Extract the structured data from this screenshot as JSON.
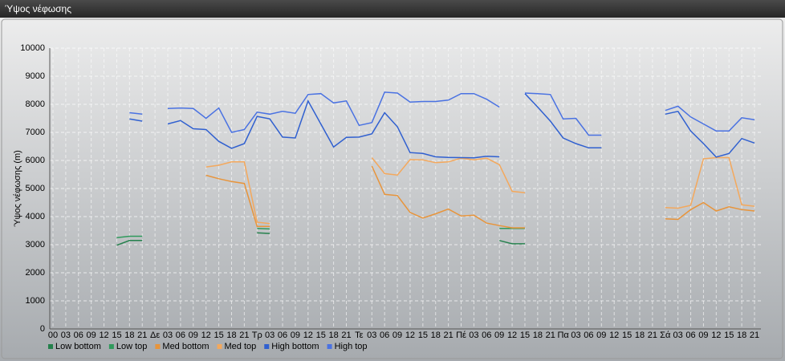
{
  "window_title": "Ύψος νέφωσης",
  "chart_data": {
    "type": "line",
    "y_label": "Ύψος νέφωσης (m)",
    "categories": [
      "00",
      "03",
      "06",
      "09",
      "12",
      "15",
      "18",
      "21",
      "Δε",
      "03",
      "06",
      "09",
      "12",
      "15",
      "18",
      "21",
      "Τρ",
      "03",
      "06",
      "09",
      "12",
      "15",
      "18",
      "21",
      "Τε",
      "03",
      "06",
      "09",
      "12",
      "15",
      "18",
      "21",
      "Πέ",
      "03",
      "06",
      "09",
      "12",
      "15",
      "18",
      "21",
      "Πα",
      "03",
      "06",
      "09",
      "12",
      "15",
      "18",
      "21",
      "Σά",
      "03",
      "06",
      "09",
      "12",
      "15",
      "18",
      "21"
    ],
    "ylim": [
      0,
      10000
    ],
    "yticks": [
      0,
      1000,
      2000,
      3000,
      4000,
      5000,
      6000,
      7000,
      8000,
      9000,
      10000
    ],
    "grid": true,
    "series": [
      {
        "name": "Low bottom",
        "color": "#24804c",
        "values": [
          null,
          null,
          null,
          null,
          null,
          2980,
          3150,
          3150,
          null,
          null,
          null,
          null,
          null,
          null,
          null,
          null,
          3420,
          3400,
          null,
          null,
          null,
          null,
          null,
          null,
          null,
          null,
          null,
          null,
          null,
          null,
          null,
          null,
          null,
          null,
          null,
          3150,
          3030,
          3030,
          null,
          null,
          null,
          null,
          null,
          null,
          null,
          null,
          null,
          null,
          null,
          null,
          null,
          null,
          null,
          null,
          null,
          null
        ]
      },
      {
        "name": "Low top",
        "color": "#2f9a5c",
        "values": [
          null,
          null,
          null,
          null,
          null,
          3250,
          3300,
          3300,
          null,
          null,
          null,
          null,
          null,
          null,
          null,
          null,
          3580,
          3560,
          null,
          null,
          null,
          null,
          null,
          null,
          null,
          null,
          null,
          null,
          null,
          null,
          null,
          null,
          null,
          null,
          null,
          3580,
          3580,
          3580,
          null,
          null,
          null,
          null,
          null,
          null,
          null,
          null,
          null,
          null,
          null,
          null,
          null,
          null,
          null,
          null,
          null,
          null
        ]
      },
      {
        "name": "Med bottom",
        "color": "#e8943a",
        "values": [
          null,
          null,
          null,
          null,
          null,
          null,
          null,
          null,
          null,
          null,
          null,
          null,
          5470,
          5350,
          5250,
          5180,
          3650,
          3650,
          null,
          null,
          null,
          null,
          null,
          null,
          null,
          5800,
          4790,
          4750,
          4150,
          3950,
          4100,
          4270,
          4020,
          4050,
          3770,
          3680,
          3600,
          3600,
          null,
          null,
          null,
          null,
          null,
          null,
          null,
          null,
          null,
          null,
          3920,
          3900,
          4250,
          4500,
          4200,
          4350,
          4250,
          4200
        ]
      },
      {
        "name": "Med top",
        "color": "#f4a85c",
        "values": [
          null,
          null,
          null,
          null,
          null,
          null,
          null,
          null,
          null,
          null,
          null,
          null,
          5770,
          5830,
          5950,
          5950,
          3800,
          3750,
          null,
          null,
          null,
          null,
          null,
          null,
          null,
          6100,
          5530,
          5480,
          6030,
          6020,
          5920,
          5950,
          6080,
          6020,
          6080,
          5850,
          4900,
          4850,
          null,
          null,
          null,
          null,
          null,
          null,
          null,
          null,
          null,
          null,
          4320,
          4300,
          4400,
          6060,
          6100,
          6100,
          4420,
          4370
        ]
      },
      {
        "name": "High bottom",
        "color": "#3060d0",
        "values": [
          null,
          null,
          null,
          null,
          null,
          null,
          7480,
          7400,
          null,
          7300,
          7420,
          7130,
          7100,
          6680,
          6430,
          6600,
          7570,
          7480,
          6830,
          6800,
          8120,
          7300,
          6480,
          6820,
          6830,
          6950,
          7700,
          7200,
          6280,
          6250,
          6130,
          6110,
          6100,
          6090,
          6150,
          6130,
          null,
          8380,
          7900,
          7400,
          6800,
          6600,
          6450,
          6450,
          null,
          null,
          null,
          null,
          7650,
          7750,
          7050,
          6600,
          6120,
          6250,
          6780,
          6620
        ]
      },
      {
        "name": "High top",
        "color": "#4a72e2",
        "values": [
          null,
          null,
          null,
          null,
          null,
          null,
          7700,
          7650,
          null,
          7850,
          7870,
          7850,
          7500,
          7870,
          7000,
          7100,
          7720,
          7650,
          7750,
          7680,
          8350,
          8380,
          8050,
          8120,
          7250,
          7350,
          8430,
          8400,
          8080,
          8100,
          8100,
          8150,
          8380,
          8380,
          8180,
          7900,
          null,
          8400,
          8380,
          8350,
          7480,
          7500,
          6900,
          6900,
          null,
          null,
          null,
          null,
          7780,
          7930,
          7550,
          7300,
          7050,
          7050,
          7520,
          7450
        ]
      }
    ]
  }
}
